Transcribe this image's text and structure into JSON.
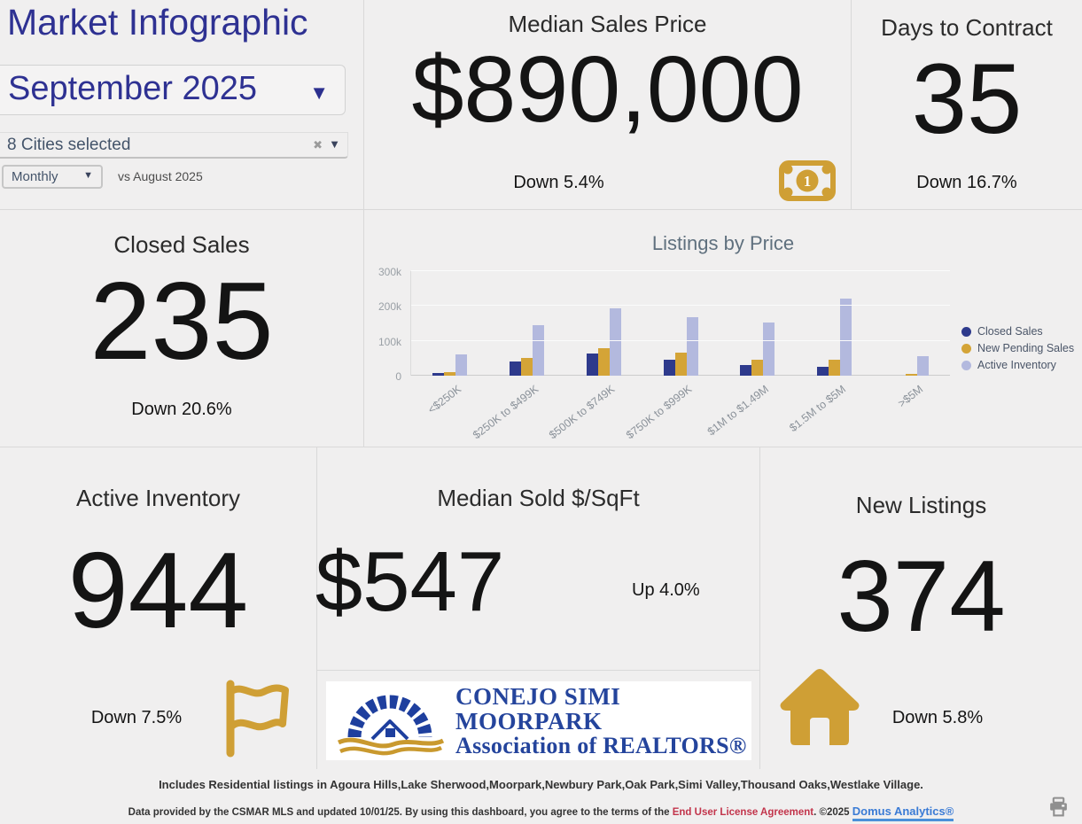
{
  "header": {
    "title": "Market Infographic",
    "month_selector": {
      "value": "September 2025",
      "dropdown_icon": "▼"
    },
    "cities_selector": {
      "value": "8 Cities selected",
      "clear_icon": "✖",
      "dropdown_icon": "▼"
    },
    "period_selector": {
      "value": "Monthly",
      "dropdown_icon": "▼"
    },
    "comparison_label": "vs August 2025"
  },
  "tiles": {
    "median_sales_price": {
      "title": "Median Sales Price",
      "value": "$890,000",
      "change": "Down 5.4%",
      "icon": "money-bill-icon",
      "icon_label": "1"
    },
    "days_to_contract": {
      "title": "Days to Contract",
      "value": "35",
      "change": "Down 16.7%"
    },
    "closed_sales": {
      "title": "Closed Sales",
      "value": "235",
      "change": "Down 20.6%"
    },
    "active_inventory": {
      "title": "Active Inventory",
      "value": "944",
      "change": "Down 7.5%",
      "icon": "flag-icon"
    },
    "median_sold_sqft": {
      "title": "Median Sold $/SqFt",
      "value": "$547",
      "change": "Up 4.0%"
    },
    "new_listings": {
      "title": "New Listings",
      "value": "374",
      "change": "Down 5.8%",
      "icon": "house-icon"
    }
  },
  "chart_data": {
    "type": "bar",
    "title": "Listings by Price",
    "categories": [
      "<$250K",
      "$250K to $499K",
      "$500K to $749K",
      "$750K to $999K",
      "$1M to $1.49M",
      "$1.5M to $5M",
      ">$5M"
    ],
    "series": [
      {
        "name": "Closed Sales",
        "color": "#2e3a8c",
        "values": [
          8000,
          40000,
          63000,
          45000,
          30000,
          25000,
          0
        ]
      },
      {
        "name": "New Pending Sales",
        "color": "#d4a437",
        "values": [
          10000,
          50000,
          79000,
          65000,
          47000,
          45000,
          5000
        ]
      },
      {
        "name": "Active Inventory",
        "color": "#b3b9de",
        "values": [
          61000,
          144000,
          194000,
          169000,
          152000,
          221000,
          57000
        ]
      }
    ],
    "y_ticks": [
      "0",
      "100k",
      "200k",
      "300k"
    ],
    "ylim": [
      0,
      300000
    ],
    "xlabel": "",
    "ylabel": "",
    "grid": true,
    "legend_position": "right"
  },
  "logo": {
    "line1": "CONEJO SIMI MOORPARK",
    "line2": "Association of REALTORS®"
  },
  "footer": {
    "line1": "Includes Residential listings in Agoura Hills,Lake Sherwood,Moorpark,Newbury Park,Oak Park,Simi Valley,Thousand Oaks,Westlake Village.",
    "line2_part1": "Data provided by the CSMAR MLS and updated 10/01/25.  By using this dashboard, you agree to the terms of the ",
    "line2_link_eula": "End User License Agreement",
    "line2_part2": ".  ©2025 ",
    "line2_link_domus": "Domus Analytics®",
    "print_icon": "printer-icon"
  },
  "colors": {
    "background": "#f0efef",
    "accent_indigo": "#2e3192",
    "accent_gold": "#cf9f35",
    "bar_navy": "#2e3a8c",
    "bar_gold": "#d4a437",
    "bar_lavender": "#b3b9de",
    "link_red": "#c2344b",
    "link_blue": "#3a7bd5"
  }
}
